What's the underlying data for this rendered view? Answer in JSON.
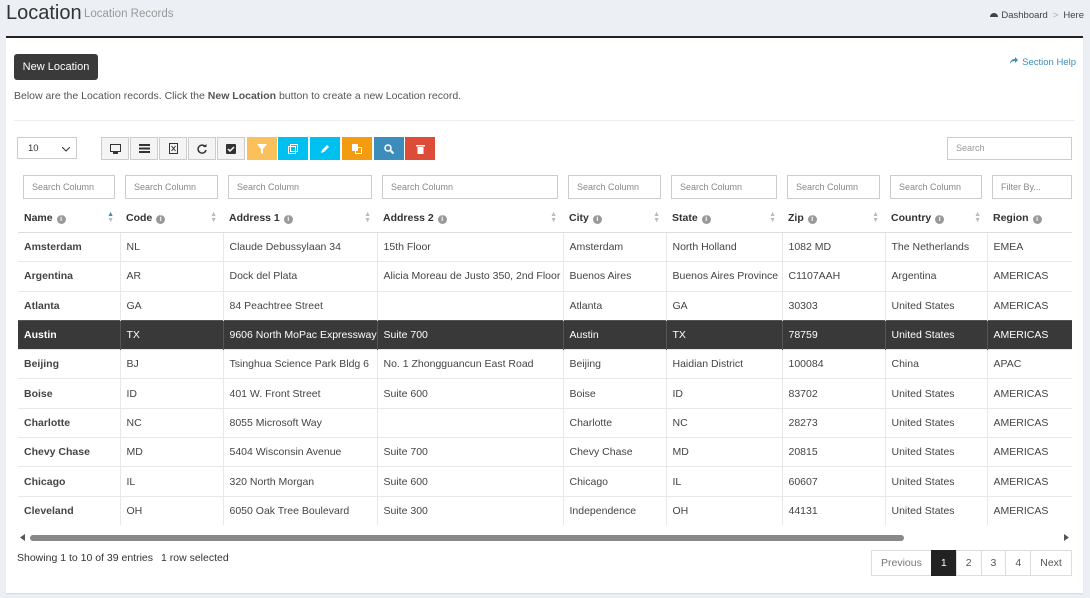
{
  "header": {
    "title": "Location",
    "subtitle": "Location Records"
  },
  "breadcrumb": [
    "Dashboard",
    "Here"
  ],
  "new_button": "New Location",
  "section_help": "Section Help",
  "intro": {
    "before": "Below are the Location records. Click the",
    "bold": "New Location",
    "after": "button to create a new Location record."
  },
  "page_length": "10",
  "search_placeholder": "Search",
  "column_filters": [
    "Search Column",
    "Search Column",
    "Search Column",
    "Search Column",
    "Search Column",
    "Search Column",
    "Search Column",
    "Search Column",
    "Filter By..."
  ],
  "table": {
    "columns": [
      "Name",
      "Code",
      "Address 1",
      "Address 2",
      "City",
      "State",
      "Zip",
      "Country",
      "Region"
    ],
    "rows": [
      [
        "Amsterdam",
        "NL",
        "Claude Debussylaan 34",
        "15th Floor",
        "Amsterdam",
        "North Holland",
        "1082 MD",
        "The Netherlands",
        "EMEA"
      ],
      [
        "Argentina",
        "AR",
        "Dock del Plata",
        "Alicia Moreau de Justo 350, 2nd Floor",
        "Buenos Aires",
        "Buenos Aires Province",
        "C1107AAH",
        "Argentina",
        "AMERICAS"
      ],
      [
        "Atlanta",
        "GA",
        "84 Peachtree Street",
        "",
        "Atlanta",
        "GA",
        "30303",
        "United States",
        "AMERICAS"
      ],
      [
        "Austin",
        "TX",
        "9606 North MoPac Expressway",
        "Suite 700",
        "Austin",
        "TX",
        "78759",
        "United States",
        "AMERICAS"
      ],
      [
        "Beijing",
        "BJ",
        "Tsinghua Science Park Bldg 6",
        "No. 1 Zhongguancun East Road",
        "Beijing",
        "Haidian District",
        "100084",
        "China",
        "APAC"
      ],
      [
        "Boise",
        "ID",
        "401 W. Front Street",
        "Suite 600",
        "Boise",
        "ID",
        "83702",
        "United States",
        "AMERICAS"
      ],
      [
        "Charlotte",
        "NC",
        "8055 Microsoft Way",
        "",
        "Charlotte",
        "NC",
        "28273",
        "United States",
        "AMERICAS"
      ],
      [
        "Chevy Chase",
        "MD",
        "5404 Wisconsin Avenue",
        "Suite 700",
        "Chevy Chase",
        "MD",
        "20815",
        "United States",
        "AMERICAS"
      ],
      [
        "Chicago",
        "IL",
        "320 North Morgan",
        "Suite 600",
        "Chicago",
        "IL",
        "60607",
        "United States",
        "AMERICAS"
      ],
      [
        "Cleveland",
        "OH",
        "6050 Oak Tree Boulevard",
        "Suite 300",
        "Independence",
        "OH",
        "44131",
        "United States",
        "AMERICAS"
      ]
    ]
  },
  "footer": {
    "info": "Showing 1 to 10 of 39 entries",
    "selected_info": "1 row selected"
  },
  "pagination": [
    "Previous",
    "1",
    "2",
    "3",
    "4",
    "Next"
  ]
}
